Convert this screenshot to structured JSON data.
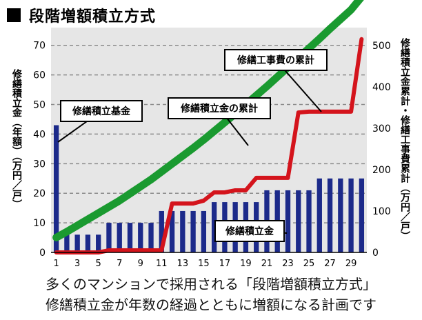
{
  "header": {
    "title": "段階増額積立方式"
  },
  "caption": {
    "line1": "多くのマンションで採用される「段階増額積立方式」",
    "line2": "修繕積立金が年数の経過とともに増額になる計画です"
  },
  "chart_data": {
    "type": "bar+line",
    "x": [
      1,
      2,
      3,
      4,
      5,
      6,
      7,
      8,
      9,
      10,
      11,
      12,
      13,
      14,
      15,
      16,
      17,
      18,
      19,
      20,
      21,
      22,
      23,
      24,
      25,
      26,
      27,
      28,
      29,
      30
    ],
    "x_tick_labels": [
      "1",
      "3",
      "5",
      "7",
      "9",
      "11",
      "13",
      "15",
      "17",
      "19",
      "21",
      "23",
      "25",
      "27",
      "29"
    ],
    "y_left": {
      "label": "修繕積立金（年額）（万円／戸）",
      "ticks": [
        0,
        10,
        20,
        30,
        40,
        50,
        60,
        70
      ],
      "ylim": [
        0,
        76
      ]
    },
    "y_right": {
      "label": "修繕積立金累計・修繕工事費累計（万円／戸）",
      "ticks": [
        0,
        100,
        200,
        300,
        400,
        500
      ],
      "ylim": [
        0,
        543
      ]
    },
    "grid": true,
    "colors": {
      "bars": "#1c2a8a",
      "cumulative_savings": "#1a9a30",
      "cumulative_cost": "#d4141c",
      "plot_bg": "#e6e6e6"
    },
    "series": [
      {
        "name": "修繕積立金",
        "axis": "left",
        "kind": "bar",
        "values": [
          43,
          6,
          6,
          6,
          6,
          10,
          10,
          10,
          10,
          10,
          14,
          14,
          14,
          14,
          14,
          17,
          17,
          17,
          17,
          17,
          21,
          21,
          21,
          21,
          21,
          25,
          25,
          25,
          25,
          25
        ]
      },
      {
        "name": "修繕積立金の累計",
        "axis": "right",
        "kind": "line",
        "values": [
          36,
          50,
          65,
          80,
          95,
          110,
          125,
          142,
          159,
          176,
          195,
          214,
          233,
          252,
          272,
          293,
          314,
          335,
          357,
          379,
          401,
          424,
          447,
          470,
          493,
          516,
          540,
          563,
          586,
          617
        ]
      },
      {
        "name": "修繕工事費の累計",
        "axis": "right",
        "kind": "line",
        "values": [
          0,
          0,
          0,
          0,
          0,
          5,
          5,
          5,
          5,
          5,
          5,
          118,
          118,
          118,
          125,
          145,
          145,
          150,
          150,
          180,
          180,
          180,
          180,
          338,
          340,
          340,
          340,
          340,
          340,
          515
        ]
      }
    ],
    "annotations": [
      {
        "text": "修繕積立基金",
        "x": 1,
        "y": 43,
        "axis": "left"
      },
      {
        "text": "修繕積立金の累計",
        "x": 18.5,
        "y": 335,
        "axis": "right"
      },
      {
        "text": "修繕工事費の累計",
        "x": 23.5,
        "y": 340,
        "axis": "right"
      },
      {
        "text": "修繕積立金",
        "x": 20,
        "y": 19,
        "axis": "left"
      }
    ]
  }
}
